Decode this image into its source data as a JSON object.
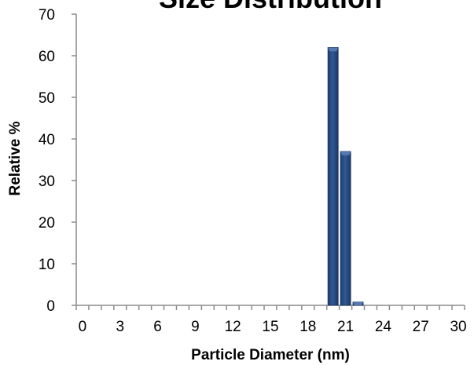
{
  "chart_data": {
    "type": "bar",
    "title": "Size Distribution",
    "xlabel": "Particle Diameter (nm)",
    "ylabel": "Relative %",
    "x_tick_labels": [
      "0",
      "3",
      "6",
      "9",
      "12",
      "15",
      "18",
      "21",
      "24",
      "27",
      "30"
    ],
    "y_tick_labels": [
      "0",
      "10",
      "20",
      "30",
      "40",
      "50",
      "60",
      "70"
    ],
    "ylim": [
      0,
      70
    ],
    "y_step": 10,
    "categories": [
      "0",
      "1",
      "2",
      "3",
      "4",
      "5",
      "6",
      "7",
      "8",
      "9",
      "10",
      "11",
      "12",
      "13",
      "14",
      "15",
      "16",
      "17",
      "18",
      "19",
      "20",
      "21",
      "22",
      "23",
      "24",
      "25",
      "26",
      "27",
      "28",
      "29",
      "30"
    ],
    "values": [
      0,
      0,
      0,
      0,
      0,
      0,
      0,
      0,
      0,
      0,
      0,
      0,
      0,
      0,
      0,
      0,
      0,
      0,
      0,
      0,
      62,
      37,
      0.8,
      0,
      0,
      0,
      0,
      0,
      0,
      0,
      0
    ],
    "grid": false,
    "legend": "none",
    "bar_color": "#2b4f86",
    "bar_highlight": "#5478b0"
  }
}
